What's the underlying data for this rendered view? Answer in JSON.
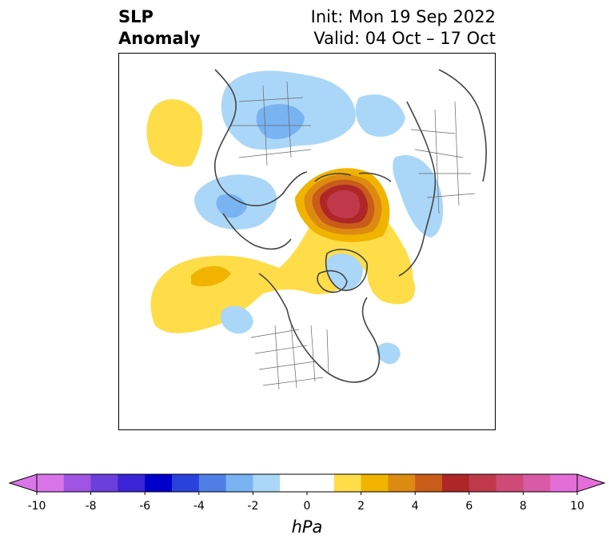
{
  "title": {
    "left_line1": "SLP",
    "left_line2": "Anomaly",
    "right_line1": "Init: Mon 19 Sep 2022",
    "right_line2": "Valid: 04 Oct – 17 Oct"
  },
  "map": {
    "projection": "north-polar-stereographic",
    "region": "Northern Hemisphere"
  },
  "colorbar": {
    "unit": "hPa",
    "min": -10,
    "max": 10,
    "step": 1,
    "ticks": [
      "-10",
      "-8",
      "-6",
      "-4",
      "-2",
      "0",
      "2",
      "4",
      "6",
      "8",
      "10"
    ],
    "extend": "both",
    "colors": [
      "#d975e8",
      "#9f54e3",
      "#6b3fdc",
      "#3a24d6",
      "#0000cc",
      "#2a42dc",
      "#4f7fe6",
      "#79b3f2",
      "#aad7f8",
      "#ffffff",
      "#ffffff",
      "#fedd48",
      "#f0b400",
      "#dd8b10",
      "#c95c19",
      "#ae2626",
      "#c0394b",
      "#cf4a76",
      "#d95aa5",
      "#e46ed8"
    ],
    "under_color": "#d975e8",
    "over_color": "#e46ed8"
  }
}
